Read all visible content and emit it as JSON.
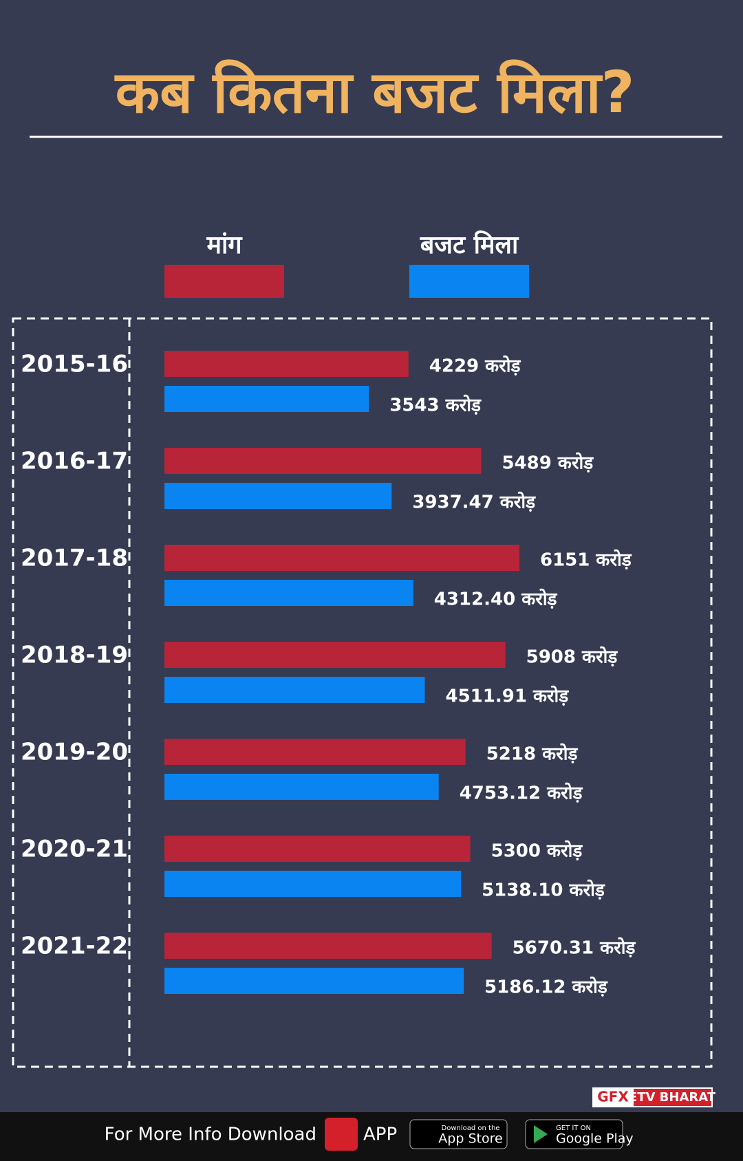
{
  "chart_data": {
    "type": "bar",
    "orientation": "horizontal",
    "title": "कब कितना बजट मिला?",
    "categories": [
      "2015-16",
      "2016-17",
      "2017-18",
      "2018-19",
      "2019-20",
      "2020-21",
      "2021-22"
    ],
    "series": [
      {
        "name": "मांग",
        "color": "#b82438",
        "values": [
          4229,
          5489,
          6151,
          5908,
          5218,
          5300,
          5670.31
        ],
        "value_labels": [
          "4229 करोड़",
          "5489 करोड़",
          "6151 करोड़",
          "5908 करोड़",
          "5218 करोड़",
          "5300 करोड़",
          "5670.31 करोड़"
        ]
      },
      {
        "name": "बजट मिला",
        "color": "#0a84f0",
        "values": [
          3543,
          3937.47,
          4312.4,
          4511.91,
          4753.12,
          5138.1,
          5186.12
        ],
        "value_labels": [
          "3543 करोड़",
          "3937.47 करोड़",
          "4312.40 करोड़",
          "4511.91 करोड़",
          "4753.12 करोड़",
          "5138.10 करोड़",
          "5186.12 करोड़"
        ]
      }
    ]
  },
  "footer": {
    "credit": "GFX",
    "brand": "ETV BHARAT",
    "text": "For More Info Download",
    "app": "APP",
    "appstore_small": "Download on the",
    "appstore": "App Store",
    "gplay_small": "GET IT ON",
    "gplay": "Google Play"
  }
}
